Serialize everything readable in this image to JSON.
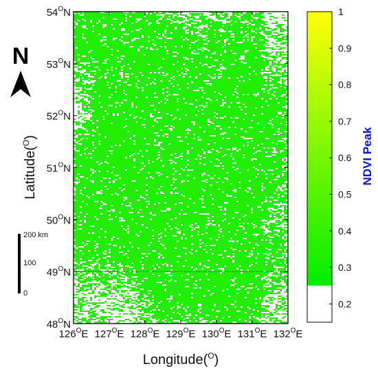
{
  "map": {
    "x_label": "Longitude(",
    "x_label_sup": "O",
    "x_label_end": ")",
    "y_label": "Latitude(",
    "y_label_sup": "O",
    "y_label_end": ")",
    "lon_ticks": [
      "126",
      "127",
      "128",
      "129",
      "130",
      "131",
      "132"
    ],
    "lon_suffix": "E",
    "lat_ticks": [
      "54",
      "53",
      "52",
      "51",
      "50",
      "49",
      "48"
    ],
    "lat_suffix": "N",
    "degree": "O",
    "lon_range": [
      126,
      132
    ],
    "lat_range": [
      48,
      54
    ],
    "dotted_line_lat": 49,
    "vegetation_color": "#22ee00"
  },
  "north_arrow": {
    "label": "N"
  },
  "scale_bar": {
    "top_label": "200 km",
    "mid_label": "100",
    "bottom_label": "0"
  },
  "colorbar": {
    "title": "NDVI Peak",
    "ticks": [
      "1",
      "0.9",
      "0.8",
      "0.7",
      "0.6",
      "0.5",
      "0.4",
      "0.3",
      "0.2"
    ],
    "tick_values": [
      1,
      0.9,
      0.8,
      0.7,
      0.6,
      0.5,
      0.4,
      0.3,
      0.2
    ],
    "range": [
      0.15,
      1
    ],
    "gradient_from": {
      "value": 0.25,
      "color": "#00ee00"
    },
    "gradient_to": {
      "value": 1,
      "color": "#ffff00"
    },
    "below_threshold_color": "#ffffff"
  }
}
